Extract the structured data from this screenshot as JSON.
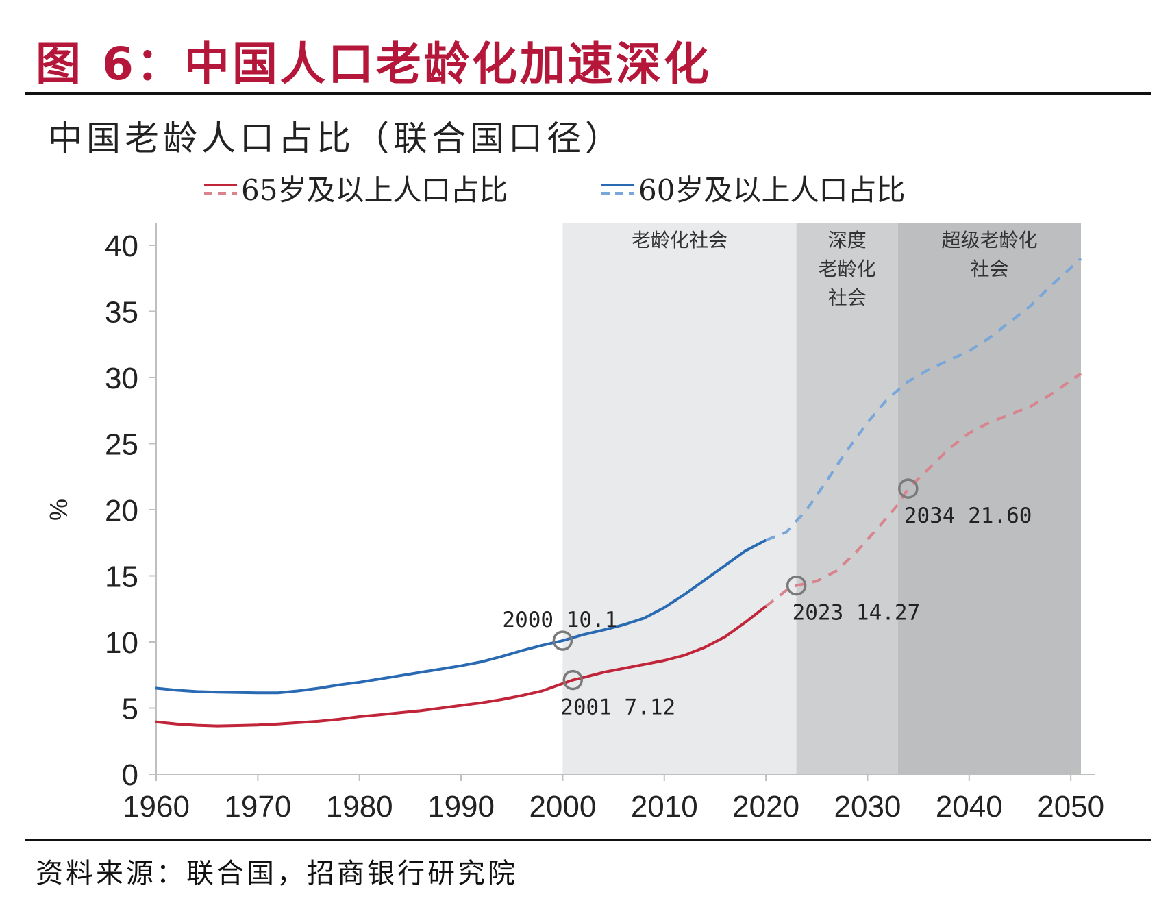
{
  "figure": {
    "title": "图 6：中国人口老龄化加速深化",
    "source": "资料来源：联合国，招商银行研究院"
  },
  "chart_data": {
    "type": "line",
    "title": "中国老龄人口占比（联合国口径）",
    "ylabel": "%",
    "xlabel": "",
    "xlim": [
      1960,
      2051
    ],
    "ylim": [
      0,
      40
    ],
    "x_ticks": [
      "1960",
      "1970",
      "1980",
      "1990",
      "2000",
      "2010",
      "2020",
      "2030",
      "2040",
      "2050"
    ],
    "y_ticks": [
      "0",
      "5",
      "10",
      "15",
      "20",
      "25",
      "30",
      "35",
      "40"
    ],
    "legend_position": "top",
    "grid": false,
    "regions": [
      {
        "label": [
          "老龄化社会"
        ],
        "from": 2000,
        "to": 2023,
        "color": "#e8eaeb"
      },
      {
        "label": [
          "深度",
          "老龄化",
          "社会"
        ],
        "from": 2023,
        "to": 2033,
        "color": "#cdcfd1"
      },
      {
        "label": [
          "超级老龄化",
          "社会"
        ],
        "from": 2033,
        "to": 2051,
        "color": "#bcbec0"
      }
    ],
    "series": [
      {
        "name": "65岁及以上人口占比",
        "color": "#c0253a",
        "projection_color": "#d9838d",
        "actual": [
          [
            1960,
            3.95
          ],
          [
            1962,
            3.8
          ],
          [
            1964,
            3.7
          ],
          [
            1966,
            3.65
          ],
          [
            1968,
            3.68
          ],
          [
            1970,
            3.72
          ],
          [
            1972,
            3.8
          ],
          [
            1974,
            3.9
          ],
          [
            1976,
            4.0
          ],
          [
            1978,
            4.15
          ],
          [
            1980,
            4.35
          ],
          [
            1982,
            4.5
          ],
          [
            1984,
            4.65
          ],
          [
            1986,
            4.8
          ],
          [
            1988,
            5.0
          ],
          [
            1990,
            5.2
          ],
          [
            1992,
            5.4
          ],
          [
            1994,
            5.65
          ],
          [
            1996,
            5.95
          ],
          [
            1998,
            6.3
          ],
          [
            2000,
            6.85
          ],
          [
            2001,
            7.12
          ],
          [
            2002,
            7.3
          ],
          [
            2004,
            7.7
          ],
          [
            2006,
            8.0
          ],
          [
            2008,
            8.3
          ],
          [
            2010,
            8.6
          ],
          [
            2012,
            9.0
          ],
          [
            2014,
            9.6
          ],
          [
            2016,
            10.4
          ],
          [
            2018,
            11.5
          ],
          [
            2020,
            12.7
          ]
        ],
        "projection": [
          [
            2020,
            12.7
          ],
          [
            2021,
            13.3
          ],
          [
            2022,
            13.9
          ],
          [
            2023,
            14.27
          ],
          [
            2025,
            14.6
          ],
          [
            2027,
            15.4
          ],
          [
            2029,
            16.9
          ],
          [
            2031,
            18.6
          ],
          [
            2033,
            20.4
          ],
          [
            2034,
            21.6
          ],
          [
            2036,
            23.1
          ],
          [
            2038,
            24.6
          ],
          [
            2040,
            25.8
          ],
          [
            2042,
            26.6
          ],
          [
            2044,
            27.2
          ],
          [
            2046,
            27.8
          ],
          [
            2048,
            28.7
          ],
          [
            2051,
            30.3
          ]
        ]
      },
      {
        "name": "60岁及以上人口占比",
        "color": "#2a6ab3",
        "projection_color": "#7aa7da",
        "actual": [
          [
            1960,
            6.5
          ],
          [
            1962,
            6.35
          ],
          [
            1964,
            6.25
          ],
          [
            1966,
            6.2
          ],
          [
            1968,
            6.18
          ],
          [
            1970,
            6.15
          ],
          [
            1972,
            6.15
          ],
          [
            1974,
            6.3
          ],
          [
            1976,
            6.5
          ],
          [
            1978,
            6.75
          ],
          [
            1980,
            6.95
          ],
          [
            1982,
            7.2
          ],
          [
            1984,
            7.45
          ],
          [
            1986,
            7.7
          ],
          [
            1988,
            7.95
          ],
          [
            1990,
            8.2
          ],
          [
            1992,
            8.5
          ],
          [
            1994,
            8.9
          ],
          [
            1996,
            9.35
          ],
          [
            1998,
            9.75
          ],
          [
            2000,
            10.1
          ],
          [
            2002,
            10.55
          ],
          [
            2004,
            10.9
          ],
          [
            2006,
            11.3
          ],
          [
            2008,
            11.8
          ],
          [
            2010,
            12.6
          ],
          [
            2012,
            13.6
          ],
          [
            2014,
            14.7
          ],
          [
            2016,
            15.8
          ],
          [
            2018,
            16.9
          ],
          [
            2020,
            17.7
          ]
        ],
        "projection": [
          [
            2020,
            17.7
          ],
          [
            2022,
            18.3
          ],
          [
            2024,
            20.0
          ],
          [
            2026,
            22.2
          ],
          [
            2028,
            24.5
          ],
          [
            2030,
            26.6
          ],
          [
            2032,
            28.4
          ],
          [
            2034,
            29.7
          ],
          [
            2036,
            30.6
          ],
          [
            2038,
            31.3
          ],
          [
            2040,
            32.0
          ],
          [
            2042,
            33.0
          ],
          [
            2044,
            34.2
          ],
          [
            2046,
            35.4
          ],
          [
            2048,
            36.9
          ],
          [
            2051,
            39.0
          ]
        ]
      }
    ],
    "annotations": [
      {
        "x": 2000,
        "y": 10.1,
        "text": "2000  10.1",
        "position": "above"
      },
      {
        "x": 2001,
        "y": 7.12,
        "text": "2001  7.12",
        "position": "below"
      },
      {
        "x": 2023,
        "y": 14.27,
        "text": "2023  14.27",
        "position": "below-right"
      },
      {
        "x": 2034,
        "y": 21.6,
        "text": "2034  21.60",
        "position": "below-right"
      }
    ]
  }
}
